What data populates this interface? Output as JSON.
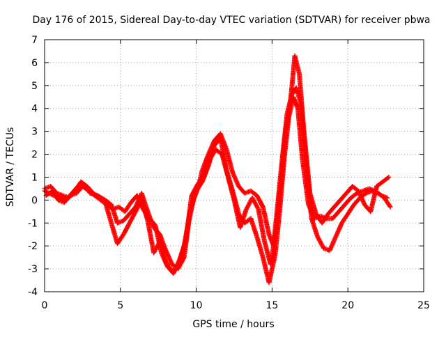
{
  "chart_data": {
    "type": "scatter",
    "title": "Day 176 of 2015, Sidereal Day-to-day VTEC variation (SDTVAR) for receiver pbwa",
    "xlabel": "GPS time / hours",
    "ylabel": "SDTVAR / TECUs",
    "xlim": [
      0,
      25
    ],
    "ylim": [
      -4,
      7
    ],
    "xticks": [
      "0",
      "5",
      "10",
      "15",
      "20",
      "25"
    ],
    "yticks": [
      "-4",
      "-3",
      "-2",
      "-1",
      "0",
      "1",
      "2",
      "3",
      "4",
      "5",
      "6",
      "7"
    ],
    "grid": true,
    "marker": "+",
    "color": "#ff0000",
    "series": [
      {
        "x": [
          0.0,
          0.3,
          0.6,
          1.0,
          1.4,
          1.8,
          2.2,
          2.6,
          3.0,
          3.5,
          4.0,
          4.4,
          4.8,
          5.2,
          5.6,
          6.0,
          6.4,
          6.8,
          7.2,
          7.6,
          8.0,
          8.4,
          8.8,
          9.2,
          9.5,
          9.8,
          10.1,
          10.4,
          10.8,
          11.2,
          11.6,
          12.0,
          12.4,
          12.8,
          13.2,
          13.6,
          14.0,
          14.4,
          14.8,
          15.1,
          15.4,
          15.7,
          16.0,
          16.3,
          16.6,
          16.9,
          17.2,
          17.6,
          18.0,
          18.4,
          18.8,
          19.2,
          19.6,
          20.0,
          20.4,
          20.8,
          21.2,
          21.6,
          22.0,
          22.4,
          22.8
        ],
        "y": [
          0.4,
          0.3,
          0.2,
          0.1,
          0.0,
          0.3,
          0.6,
          0.7,
          0.3,
          0.2,
          0.0,
          -0.2,
          -1.0,
          -0.9,
          -0.6,
          -0.3,
          0.3,
          -0.5,
          -1.2,
          -1.5,
          -2.2,
          -2.8,
          -3.0,
          -2.5,
          -1.0,
          0.0,
          0.5,
          1.3,
          2.0,
          2.6,
          2.9,
          2.2,
          1.2,
          0.6,
          0.3,
          0.4,
          0.2,
          -0.3,
          -1.5,
          -2.0,
          0.0,
          2.0,
          3.8,
          4.6,
          4.9,
          4.2,
          2.0,
          -0.8,
          -1.6,
          -2.1,
          -2.2,
          -1.6,
          -1.0,
          -0.6,
          -0.2,
          0.1,
          0.3,
          0.4,
          0.3,
          0.1,
          -0.3
        ]
      },
      {
        "x": [
          0.0,
          0.4,
          0.8,
          1.2,
          1.6,
          2.0,
          2.4,
          2.8,
          3.2,
          3.6,
          4.0,
          4.4,
          4.8,
          5.2,
          5.6,
          6.0,
          6.4,
          6.8,
          7.2,
          7.6,
          8.0,
          8.4,
          8.8,
          9.2,
          9.6,
          10.0,
          10.4,
          10.8,
          11.2,
          11.6,
          12.0,
          12.4,
          12.8,
          13.2,
          13.6,
          14.0,
          14.4,
          14.8,
          15.2,
          15.5,
          15.8,
          16.1,
          16.4,
          16.7,
          17.0,
          17.4,
          17.8,
          18.2,
          18.6,
          19.0,
          19.4,
          19.8,
          20.2,
          20.6,
          21.0,
          21.4,
          21.8,
          22.2,
          22.6
        ],
        "y": [
          0.5,
          0.6,
          0.3,
          0.2,
          0.1,
          0.4,
          0.8,
          0.6,
          0.3,
          0.1,
          -0.1,
          -1.0,
          -1.9,
          -1.5,
          -1.0,
          -0.5,
          0.0,
          -0.9,
          -2.3,
          -1.8,
          -2.7,
          -3.1,
          -2.9,
          -2.0,
          -0.5,
          0.4,
          0.8,
          1.5,
          2.4,
          2.7,
          1.3,
          0.4,
          -0.6,
          -1.0,
          -0.8,
          -1.6,
          -2.5,
          -3.6,
          -2.4,
          -0.5,
          1.8,
          3.6,
          4.5,
          4.0,
          1.8,
          -0.2,
          -0.8,
          -0.7,
          -0.8,
          -0.8,
          -0.5,
          -0.2,
          0.1,
          0.3,
          0.4,
          0.5,
          0.4,
          0.2,
          0.1
        ]
      },
      {
        "x": [
          0.1,
          0.5,
          0.9,
          1.3,
          1.7,
          2.1,
          2.5,
          2.9,
          3.3,
          3.7,
          4.1,
          4.5,
          4.9,
          5.3,
          5.7,
          6.1,
          6.5,
          6.9,
          7.3,
          7.7,
          8.1,
          8.5,
          8.9,
          9.3,
          9.7,
          10.1,
          10.5,
          10.9,
          11.3,
          11.7,
          12.1,
          12.5,
          12.9,
          13.3,
          13.7,
          14.1,
          14.5,
          14.9,
          15.3,
          15.6,
          15.9,
          16.2,
          16.5,
          16.8,
          17.1,
          17.5,
          17.9,
          18.3,
          18.7,
          19.1,
          19.5,
          19.9,
          20.3,
          20.7,
          21.1,
          21.5,
          21.9,
          22.3,
          22.7
        ],
        "y": [
          0.2,
          0.4,
          0.0,
          -0.1,
          0.2,
          0.3,
          0.6,
          0.4,
          0.2,
          0.0,
          -0.2,
          -0.4,
          -0.3,
          -0.5,
          -0.1,
          0.2,
          -0.4,
          -0.8,
          -1.1,
          -2.3,
          -2.9,
          -3.2,
          -2.6,
          -1.8,
          0.2,
          0.7,
          1.0,
          1.8,
          2.2,
          2.0,
          1.0,
          0.0,
          -1.2,
          -0.4,
          0.1,
          -0.4,
          -1.8,
          -2.8,
          -1.2,
          0.8,
          3.0,
          4.2,
          6.3,
          5.5,
          3.0,
          0.3,
          -0.6,
          -1.0,
          -0.6,
          -0.3,
          0.0,
          0.3,
          0.6,
          0.4,
          -0.2,
          -0.5,
          0.6,
          0.8,
          1.0
        ]
      }
    ]
  }
}
